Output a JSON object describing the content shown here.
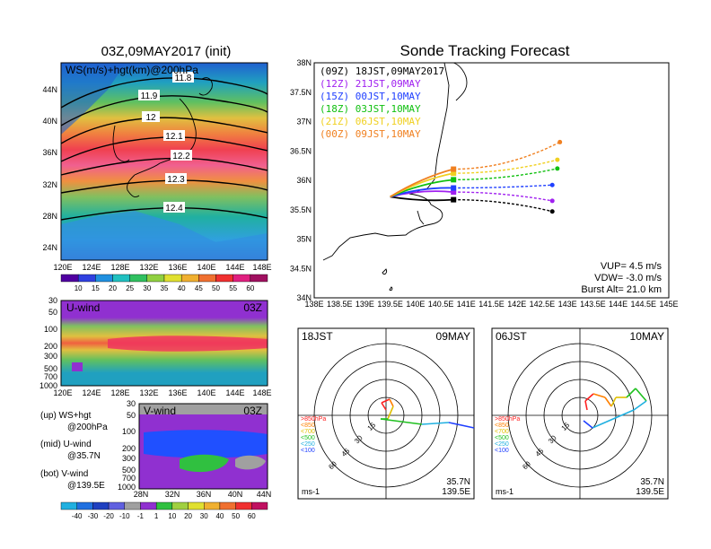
{
  "left_map": {
    "title": "03Z,09MAY2017 (init)",
    "subtitle": "WS(m/s)+hgt(km)@200hPa",
    "lat_ticks": [
      "44N",
      "40N",
      "36N",
      "32N",
      "28N",
      "24N"
    ],
    "lon_ticks": [
      "120E",
      "124E",
      "128E",
      "132E",
      "136E",
      "140E",
      "144E",
      "148E"
    ],
    "contour_labels": [
      "11.8",
      "11.9",
      "12",
      "12.1",
      "12.2",
      "12.3",
      "12.4"
    ],
    "colorbar_ticks": [
      "10",
      "15",
      "20",
      "25",
      "30",
      "35",
      "40",
      "45",
      "50",
      "55",
      "60"
    ]
  },
  "u_panel": {
    "title": "U-wind",
    "time": "03Z",
    "p_ticks": [
      "30",
      "50",
      "100",
      "200",
      "300",
      "500",
      "700",
      "1000"
    ],
    "lon_ticks": [
      "120E",
      "124E",
      "128E",
      "132E",
      "136E",
      "140E",
      "144E",
      "148E"
    ]
  },
  "v_panel": {
    "title": "V-wind",
    "time": "03Z",
    "p_ticks": [
      "30",
      "50",
      "100",
      "200",
      "300",
      "500",
      "700",
      "1000"
    ],
    "lat_ticks": [
      "28N",
      "32N",
      "36N",
      "40N",
      "44N"
    ],
    "colorbar_ticks": [
      "-40",
      "-30",
      "-20",
      "-10",
      "-1",
      "1",
      "10",
      "20",
      "30",
      "40",
      "50",
      "60"
    ]
  },
  "legend_notes": [
    {
      "a": "(up) WS+hgt",
      "b": "@200hPa"
    },
    {
      "a": "(mid) U-wind",
      "b": "@35.7N"
    },
    {
      "a": "(bot) V-wind",
      "b": "@139.5E"
    }
  ],
  "tracking": {
    "title": "Sonde Tracking Forecast",
    "lat_ticks": [
      "38N",
      "37.5N",
      "37N",
      "36.5N",
      "36N",
      "35.5N",
      "35N",
      "34.5N",
      "34N"
    ],
    "lon_ticks": [
      "138E",
      "138.5E",
      "139E",
      "139.5E",
      "140E",
      "140.5E",
      "141E",
      "141.5E",
      "142E",
      "142.5E",
      "143E",
      "143.5E",
      "144E",
      "144.5E",
      "145E"
    ],
    "params": [
      "VUP= 4.5 m/s",
      "VDW= -3.0 m/s",
      "Burst Alt= 21.0 km"
    ]
  },
  "chart_data": {
    "type": "line",
    "title": "Sonde Tracking Forecast",
    "xlim": [
      138,
      145
    ],
    "ylim": [
      34,
      38
    ],
    "launch": {
      "lon": 139.5,
      "lat": 35.72
    },
    "series": [
      {
        "name": "(09Z)  18JST,09MAY2017",
        "color": "#000000",
        "burst": [
          140.75,
          35.67
        ],
        "land": [
          142.7,
          35.47
        ]
      },
      {
        "name": "(12Z)  21JST,09MAY",
        "color": "#a020f0",
        "burst": [
          140.75,
          35.8
        ],
        "land": [
          142.7,
          35.65
        ]
      },
      {
        "name": "(15Z)  00JST,10MAY",
        "color": "#2040ff",
        "burst": [
          140.75,
          35.87
        ],
        "land": [
          142.7,
          35.92
        ]
      },
      {
        "name": "(18Z)  03JST,10MAY",
        "color": "#10c010",
        "burst": [
          140.75,
          36.01
        ],
        "land": [
          142.8,
          36.2
        ]
      },
      {
        "name": "(21Z)  06JST,10MAY",
        "color": "#f0d020",
        "burst": [
          140.75,
          36.12
        ],
        "land": [
          142.8,
          36.35
        ]
      },
      {
        "name": "(00Z)  09JST,10MAY",
        "color": "#f08020",
        "burst": [
          140.75,
          36.19
        ],
        "land": [
          142.85,
          36.65
        ]
      }
    ]
  },
  "hodographs": [
    {
      "left": "18JST",
      "right": "09MAY",
      "lat": "35.7N",
      "lon": "139.5E",
      "unit": "ms-1",
      "ring_labels": [
        "15",
        "30",
        "45",
        "60"
      ],
      "levels": [
        ">850hPa",
        "<850",
        "<700",
        "<500",
        "<250",
        "<100"
      ]
    },
    {
      "left": "06JST",
      "right": "10MAY",
      "lat": "35.7N",
      "lon": "139.5E",
      "unit": "ms-1",
      "ring_labels": [
        "15",
        "30",
        "45",
        "60"
      ],
      "levels": [
        ">850hPa",
        "<850",
        "<700",
        "<500",
        "<250",
        "<100"
      ]
    }
  ],
  "colors": {
    "levels": [
      "#ff2020",
      "#ff8000",
      "#e0c000",
      "#20c020",
      "#20b0e0",
      "#2040ff"
    ]
  }
}
